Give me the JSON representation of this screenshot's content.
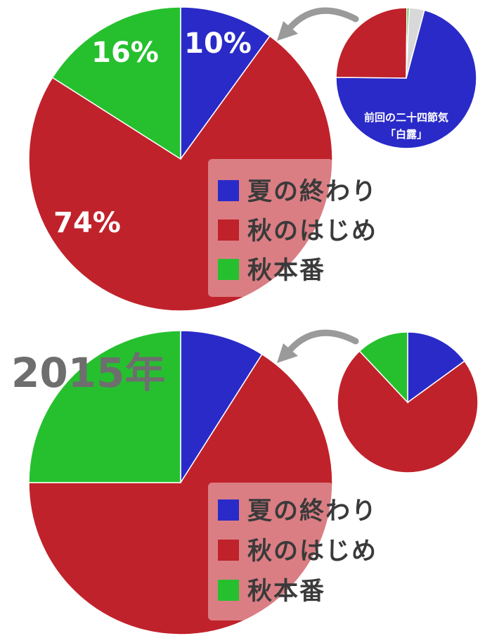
{
  "colors": {
    "summer_end": "#2a2ac8",
    "autumn_start": "#c0222b",
    "autumn_full": "#26c02f",
    "other": "#d8d8d8",
    "arrow": "#9a9a9a",
    "legend_bg": "#ffffff"
  },
  "legend": {
    "item1": "夏の終わり",
    "item2": "秋のはじめ",
    "item3": "秋本番"
  },
  "top": {
    "labels": {
      "summer_end": "10%",
      "autumn_start": "74%",
      "autumn_full": "16%"
    },
    "inset_caption_line1": "前回の二十四節気",
    "inset_caption_line2": "「白露」"
  },
  "bottom": {
    "year_label": "2015年"
  },
  "chart_data": [
    {
      "type": "pie",
      "panel": "top-main",
      "categories": [
        "夏の終わり",
        "秋のはじめ",
        "秋本番"
      ],
      "values": [
        10,
        74,
        16
      ],
      "data_labels": [
        "10%",
        "74%",
        "16%"
      ],
      "legend_position": "bottom-right",
      "start_angle": 0,
      "direction": "clockwise"
    },
    {
      "type": "pie",
      "panel": "top-inset",
      "caption": "前回の二十四節気「白露」",
      "categories": [
        "夏の終わり",
        "秋のはじめ",
        "秋本番",
        "other"
      ],
      "values": [
        71,
        25,
        0.5,
        3.5
      ],
      "start_angle": 15,
      "direction": "clockwise"
    },
    {
      "type": "pie",
      "panel": "bottom-main",
      "title": "2015年",
      "categories": [
        "夏の終わり",
        "秋のはじめ",
        "秋本番"
      ],
      "values": [
        9,
        66,
        25
      ],
      "legend_position": "bottom-right",
      "start_angle": 0,
      "direction": "clockwise"
    },
    {
      "type": "pie",
      "panel": "bottom-inset",
      "categories": [
        "夏の終わり",
        "秋のはじめ",
        "秋本番"
      ],
      "values": [
        15,
        73,
        12
      ],
      "start_angle": 0,
      "direction": "clockwise"
    }
  ]
}
